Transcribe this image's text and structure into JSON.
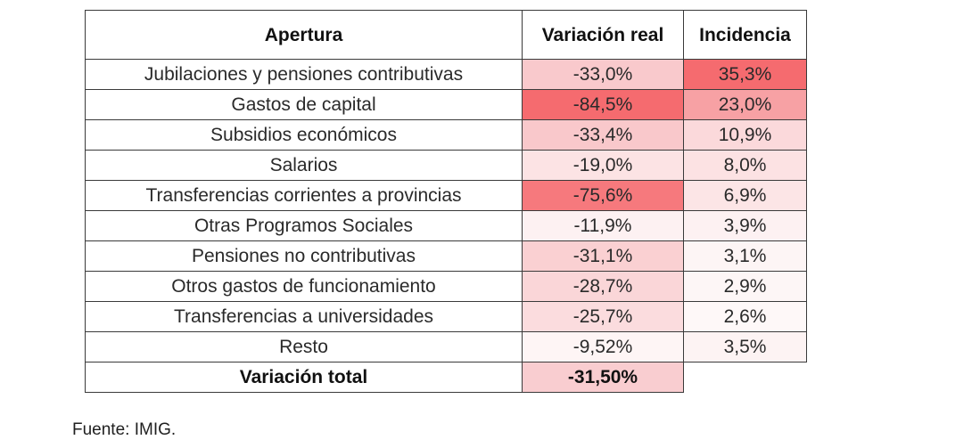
{
  "table": {
    "headers": [
      "Apertura",
      "Variación real",
      "Incidencia"
    ],
    "rows": [
      {
        "label": "Jubilaciones y pensiones contributivas",
        "variacion": "-33,0%",
        "incidencia": "35,3%",
        "variacion_bg": "#f9c9cc",
        "incidencia_bg": "#f56b6f"
      },
      {
        "label": "Gastos de capital",
        "variacion": "-84,5%",
        "incidencia": "23,0%",
        "variacion_bg": "#f56b6f",
        "incidencia_bg": "#f7a1a4"
      },
      {
        "label": "Subsidios económicos",
        "variacion": "-33,4%",
        "incidencia": "10,9%",
        "variacion_bg": "#f9c8cb",
        "incidencia_bg": "#fbd9db"
      },
      {
        "label": "Salarios",
        "variacion": "-19,0%",
        "incidencia": "8,0%",
        "variacion_bg": "#fce3e4",
        "incidencia_bg": "#fce2e3"
      },
      {
        "label": "Transferencias corrientes a provincias",
        "variacion": "-75,6%",
        "incidencia": "6,9%",
        "variacion_bg": "#f6797d",
        "incidencia_bg": "#fce5e6"
      },
      {
        "label": "Otras Programos Sociales",
        "variacion": "-11,9%",
        "incidencia": "3,9%",
        "variacion_bg": "#fdf1f2",
        "incidencia_bg": "#fdf1f2"
      },
      {
        "label": "Pensiones no contributivas",
        "variacion": "-31,1%",
        "incidencia": "3,1%",
        "variacion_bg": "#fad0d2",
        "incidencia_bg": "#fdf5f5"
      },
      {
        "label": "Otros gastos de funcionamiento",
        "variacion": "-28,7%",
        "incidencia": "2,9%",
        "variacion_bg": "#fad6d8",
        "incidencia_bg": "#fdf6f6"
      },
      {
        "label": "Transferencias a universidades",
        "variacion": "-25,7%",
        "incidencia": "2,6%",
        "variacion_bg": "#fbdcde",
        "incidencia_bg": "#fef8f8"
      },
      {
        "label": "Resto",
        "variacion": "-9,52%",
        "incidencia": "3,5%",
        "variacion_bg": "#fef5f5",
        "incidencia_bg": "#fdf3f3"
      }
    ],
    "total": {
      "label": "Variación total",
      "value": "-31,50%",
      "value_bg": "#f9cdd0"
    }
  },
  "source": "Fuente: IMIG."
}
